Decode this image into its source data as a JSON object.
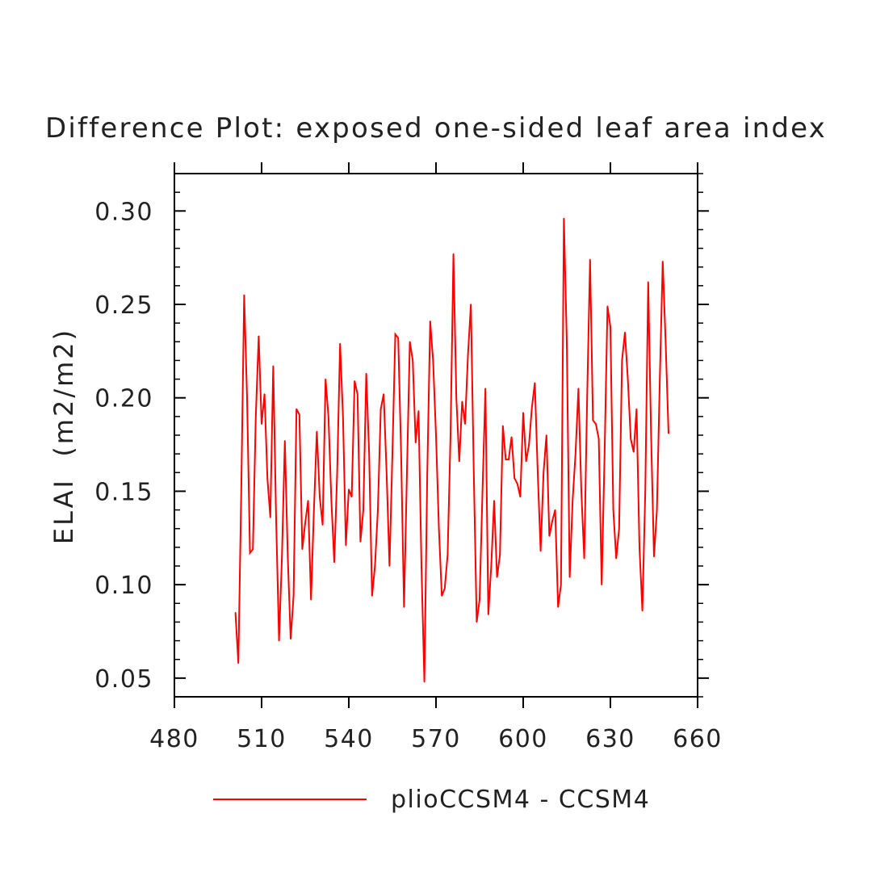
{
  "chart_data": {
    "type": "line",
    "title": "Difference Plot: exposed one-sided leaf area index",
    "xlabel": "",
    "ylabel": "ELAI  (m2/m2)",
    "xlim": [
      480,
      660
    ],
    "ylim": [
      0.04,
      0.32
    ],
    "grid": false,
    "legend_position": "bottom-center",
    "x_ticks": [
      {
        "v": 480,
        "label": "480"
      },
      {
        "v": 510,
        "label": "510"
      },
      {
        "v": 540,
        "label": "540"
      },
      {
        "v": 570,
        "label": "570"
      },
      {
        "v": 600,
        "label": "600"
      },
      {
        "v": 630,
        "label": "630"
      },
      {
        "v": 660,
        "label": "660"
      }
    ],
    "y_ticks": [
      {
        "v": 0.05,
        "label": "0.05"
      },
      {
        "v": 0.1,
        "label": "0.10"
      },
      {
        "v": 0.15,
        "label": "0.15"
      },
      {
        "v": 0.2,
        "label": "0.20"
      },
      {
        "v": 0.25,
        "label": "0.25"
      },
      {
        "v": 0.3,
        "label": "0.30"
      }
    ],
    "series": [
      {
        "name": "plioCCSM4 - CCSM4",
        "color": "#ff0000",
        "x": [
          501,
          502,
          503,
          504,
          505,
          506,
          507,
          508,
          509,
          510,
          511,
          512,
          513,
          514,
          515,
          516,
          517,
          518,
          519,
          520,
          521,
          522,
          523,
          524,
          525,
          526,
          527,
          528,
          529,
          530,
          531,
          532,
          533,
          534,
          535,
          536,
          537,
          538,
          539,
          540,
          541,
          542,
          543,
          544,
          545,
          546,
          547,
          548,
          549,
          550,
          551,
          552,
          553,
          554,
          555,
          556,
          557,
          558,
          559,
          560,
          561,
          562,
          563,
          564,
          565,
          566,
          567,
          568,
          569,
          570,
          571,
          572,
          573,
          574,
          575,
          576,
          577,
          578,
          579,
          580,
          581,
          582,
          583,
          584,
          585,
          586,
          587,
          588,
          589,
          590,
          591,
          592,
          593,
          594,
          595,
          596,
          597,
          598,
          599,
          600,
          601,
          602,
          603,
          604,
          605,
          606,
          607,
          608,
          609,
          610,
          611,
          612,
          613,
          614,
          615,
          616,
          617,
          618,
          619,
          620,
          621,
          622,
          623,
          624,
          625,
          626,
          627,
          628,
          629,
          630,
          631,
          632,
          633,
          634,
          635,
          636,
          637,
          638,
          639,
          640,
          641,
          642,
          643,
          644,
          645,
          646,
          647,
          648,
          649,
          650
        ],
        "y": [
          0.085,
          0.058,
          0.15,
          0.255,
          0.2,
          0.117,
          0.119,
          0.19,
          0.233,
          0.186,
          0.202,
          0.157,
          0.136,
          0.217,
          0.135,
          0.07,
          0.115,
          0.177,
          0.115,
          0.071,
          0.094,
          0.194,
          0.191,
          0.119,
          0.133,
          0.145,
          0.092,
          0.14,
          0.182,
          0.147,
          0.132,
          0.21,
          0.19,
          0.145,
          0.112,
          0.16,
          0.229,
          0.19,
          0.121,
          0.151,
          0.147,
          0.209,
          0.202,
          0.123,
          0.14,
          0.213,
          0.17,
          0.094,
          0.11,
          0.14,
          0.194,
          0.202,
          0.16,
          0.11,
          0.17,
          0.234,
          0.232,
          0.17,
          0.088,
          0.16,
          0.23,
          0.22,
          0.176,
          0.193,
          0.11,
          0.048,
          0.16,
          0.241,
          0.22,
          0.18,
          0.13,
          0.094,
          0.098,
          0.116,
          0.18,
          0.277,
          0.2,
          0.166,
          0.198,
          0.186,
          0.223,
          0.25,
          0.16,
          0.08,
          0.092,
          0.15,
          0.205,
          0.084,
          0.11,
          0.145,
          0.104,
          0.116,
          0.185,
          0.167,
          0.167,
          0.179,
          0.157,
          0.154,
          0.147,
          0.192,
          0.166,
          0.175,
          0.195,
          0.208,
          0.16,
          0.118,
          0.16,
          0.18,
          0.126,
          0.134,
          0.14,
          0.088,
          0.1,
          0.296,
          0.23,
          0.104,
          0.145,
          0.17,
          0.205,
          0.15,
          0.114,
          0.2,
          0.274,
          0.188,
          0.186,
          0.178,
          0.1,
          0.17,
          0.249,
          0.238,
          0.14,
          0.114,
          0.13,
          0.22,
          0.235,
          0.21,
          0.178,
          0.171,
          0.194,
          0.12,
          0.086,
          0.15,
          0.262,
          0.18,
          0.115,
          0.14,
          0.21,
          0.273,
          0.23,
          0.181
        ]
      }
    ]
  }
}
